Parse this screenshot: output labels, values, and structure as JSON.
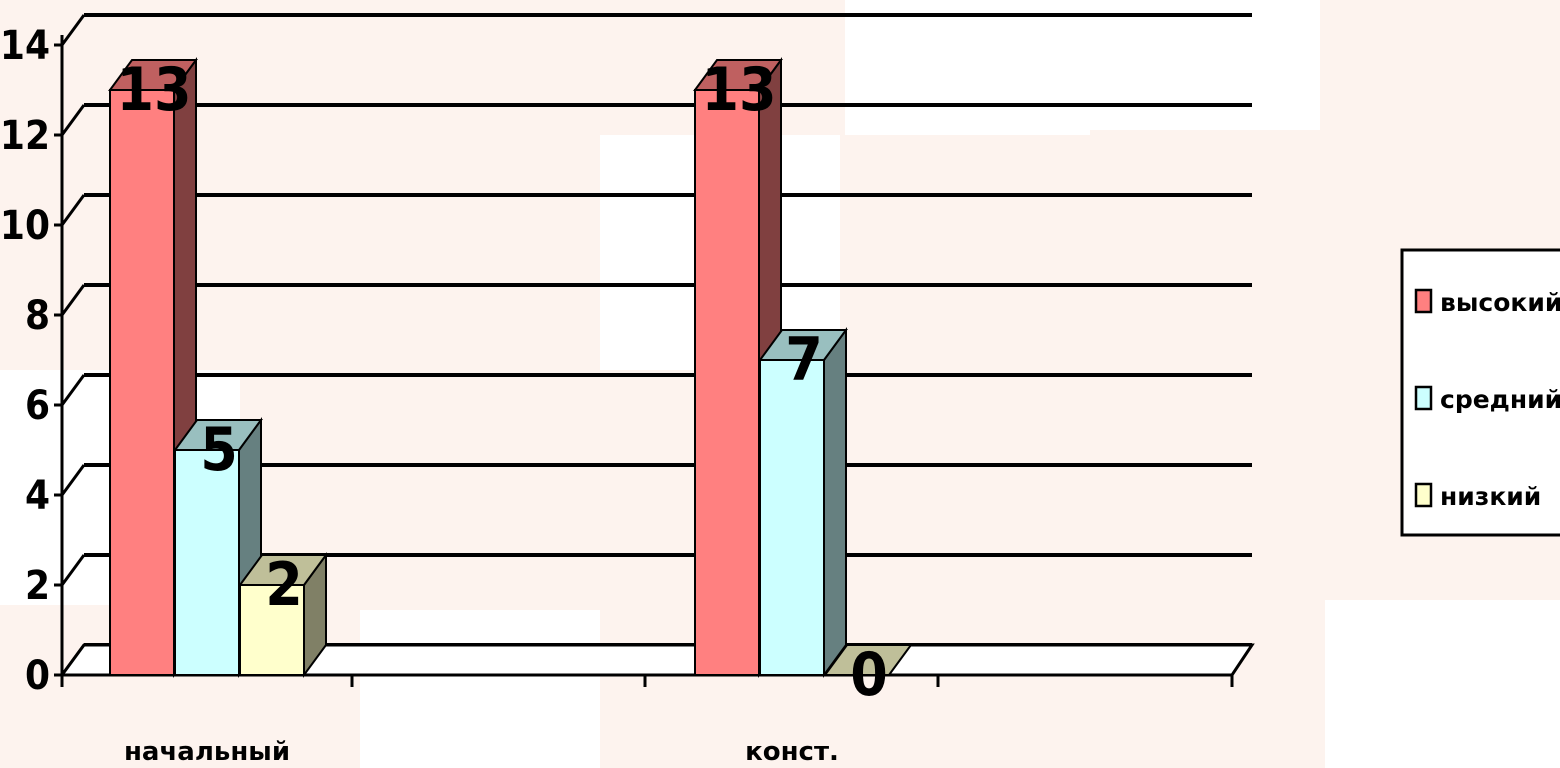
{
  "chart_data": {
    "type": "bar",
    "categories": [
      "начальный",
      "конст."
    ],
    "series": [
      {
        "name": "высокий",
        "values": [
          13,
          13
        ],
        "color": "#ff8080"
      },
      {
        "name": "средний",
        "values": [
          5,
          7
        ],
        "color": "#ccffff"
      },
      {
        "name": "низкий",
        "values": [
          2,
          0
        ],
        "color": "#ffffcc"
      }
    ],
    "data_labels": [
      [
        "13",
        "13"
      ],
      [
        "5",
        "7"
      ],
      [
        "2",
        "0"
      ]
    ],
    "ylim": [
      0,
      14
    ],
    "yticks": [
      0,
      2,
      4,
      6,
      8,
      10,
      12,
      14
    ],
    "grid": true,
    "legend": "right"
  }
}
